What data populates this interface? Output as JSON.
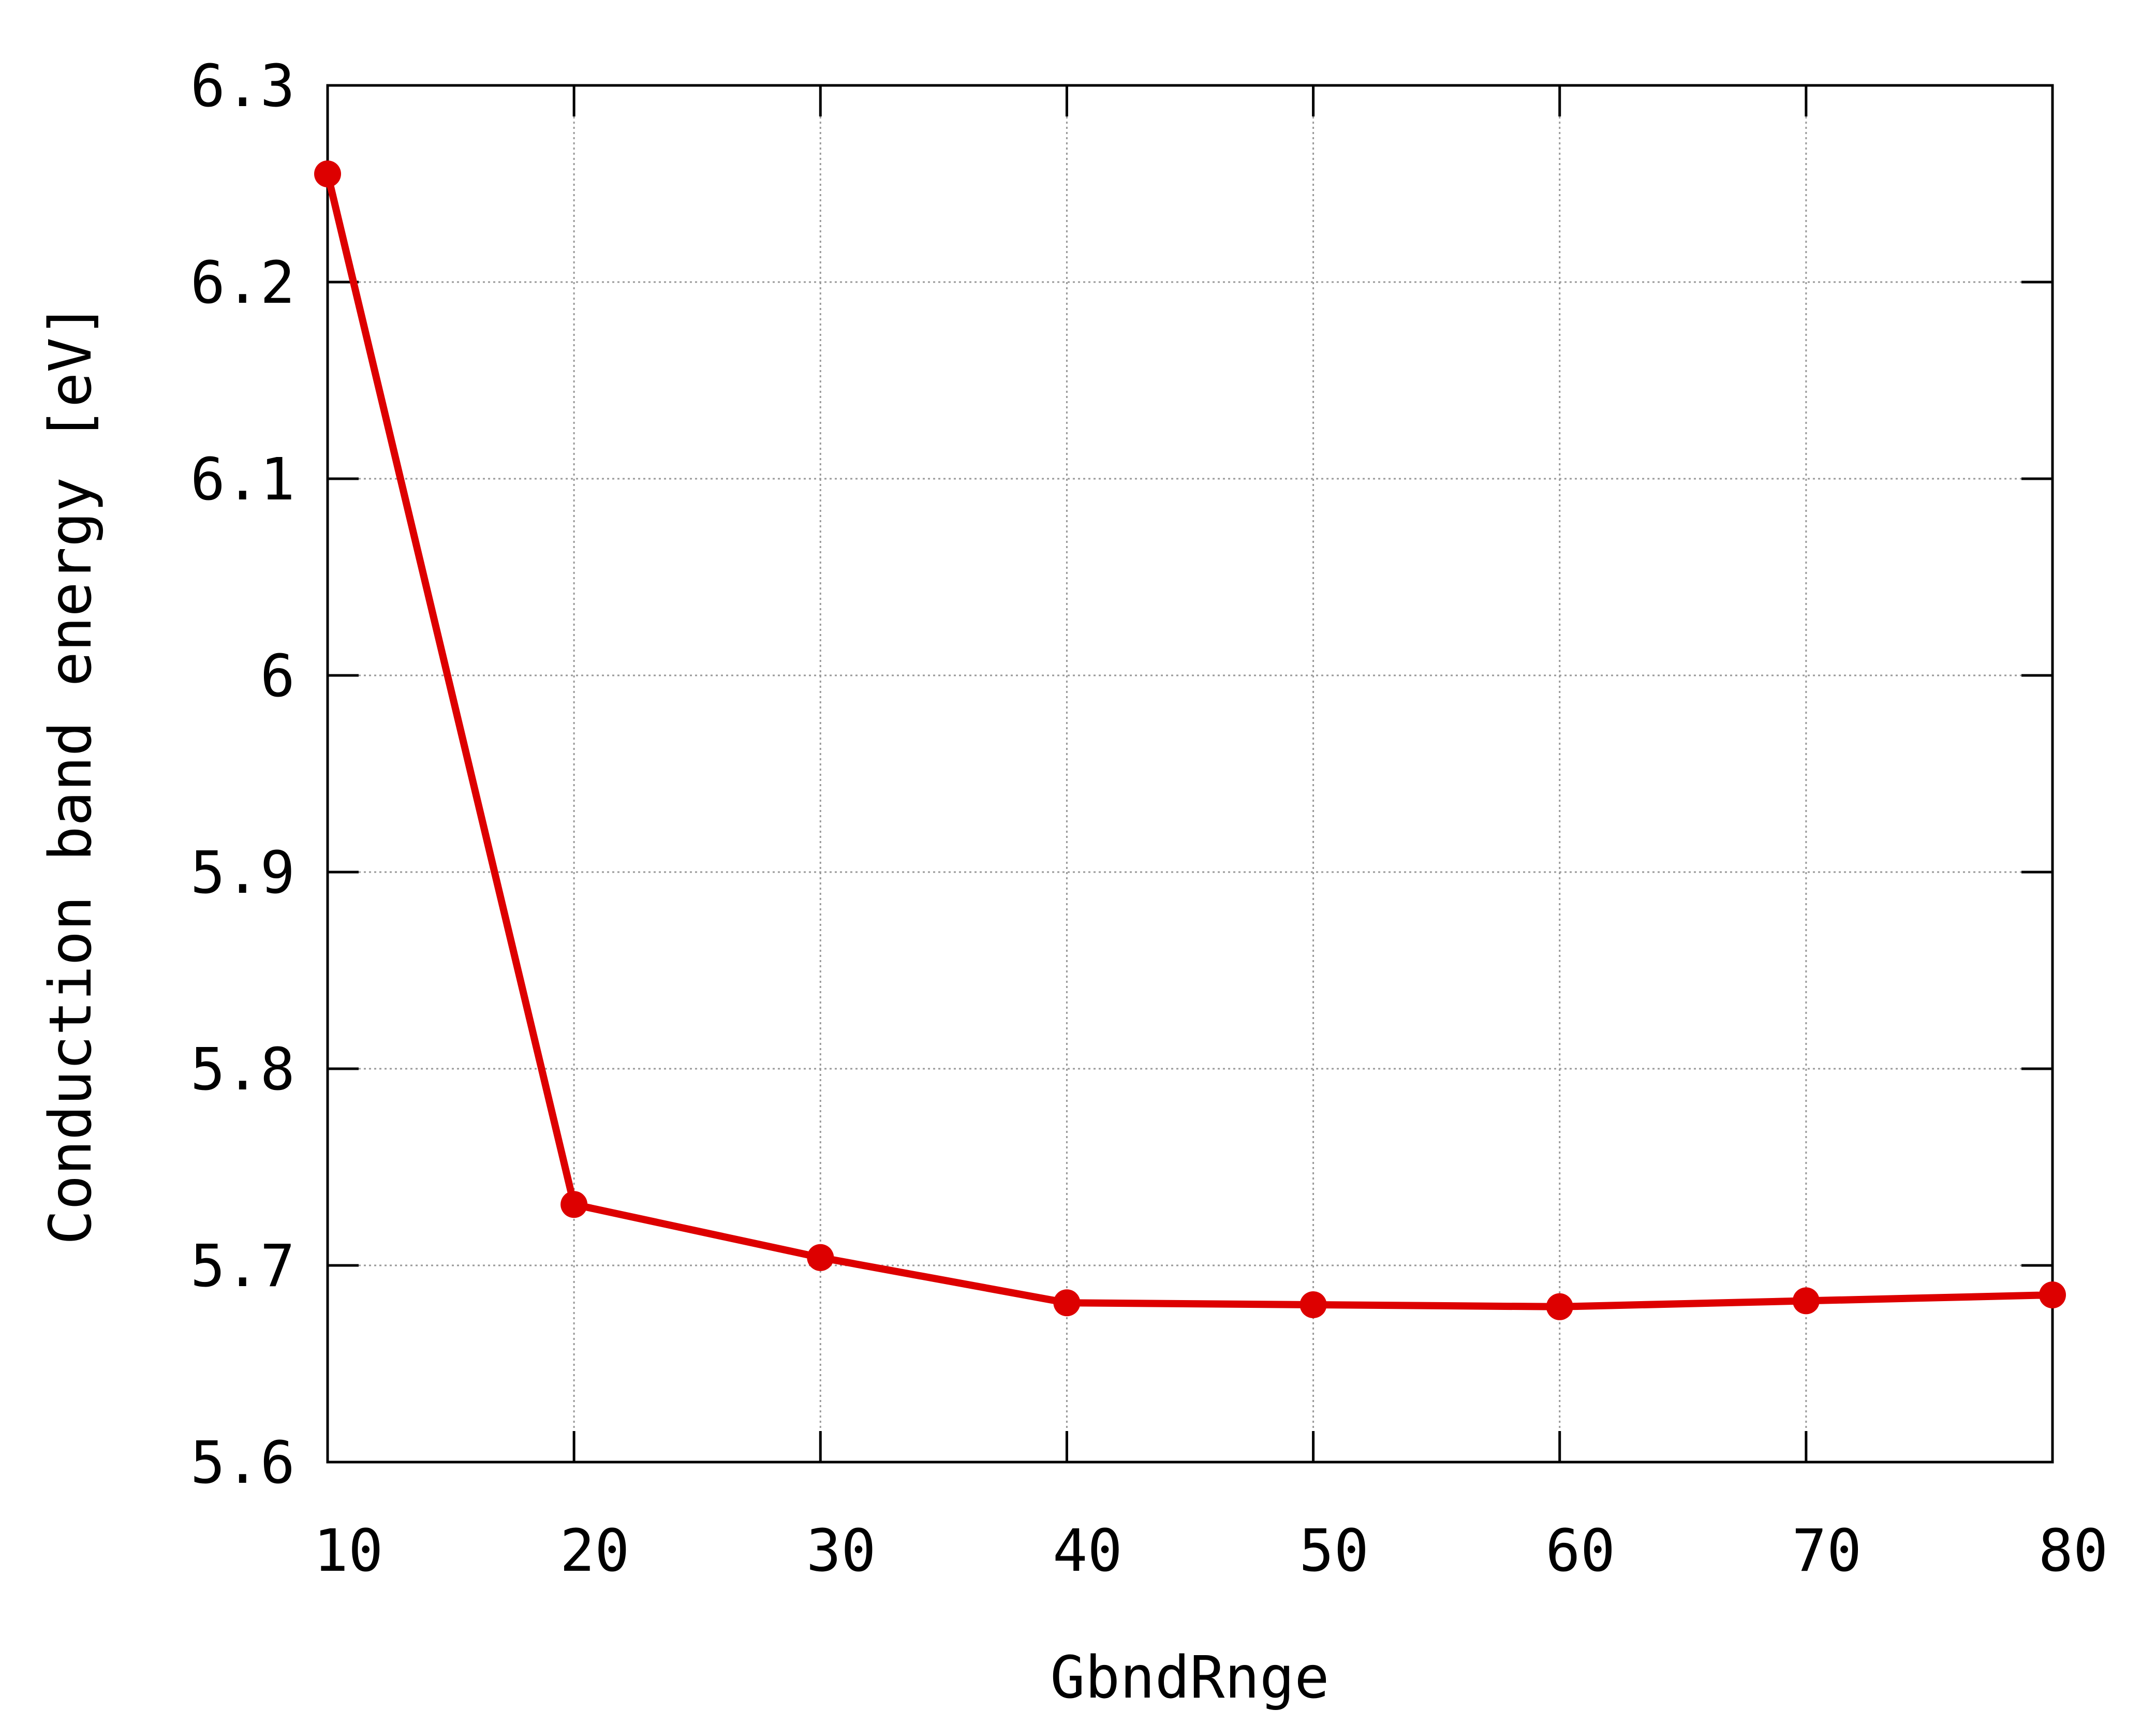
{
  "chart_data": {
    "type": "line",
    "title": "",
    "xlabel": "GbndRnge",
    "ylabel": "Conduction band energy [eV]",
    "xlim": [
      10,
      80
    ],
    "ylim": [
      5.6,
      6.3
    ],
    "x_ticks": [
      10,
      20,
      30,
      40,
      50,
      60,
      70,
      80
    ],
    "x_tick_labels": [
      "10",
      "20",
      "30",
      "40",
      "50",
      "60",
      "70",
      "80"
    ],
    "y_ticks": [
      5.6,
      5.7,
      5.8,
      5.9,
      6.0,
      6.1,
      6.2,
      6.3
    ],
    "y_tick_labels": [
      "5.6",
      "5.7",
      "5.8",
      "5.9",
      "6",
      "6.1",
      "6.2",
      "6.3"
    ],
    "grid": true,
    "legend": "none",
    "series": [
      {
        "color": "#dd0000",
        "marker": "circle",
        "x": [
          10,
          20,
          30,
          40,
          50,
          60,
          70,
          80
        ],
        "y": [
          6.255,
          5.731,
          5.704,
          5.681,
          5.68,
          5.679,
          5.682,
          5.685
        ]
      }
    ]
  }
}
